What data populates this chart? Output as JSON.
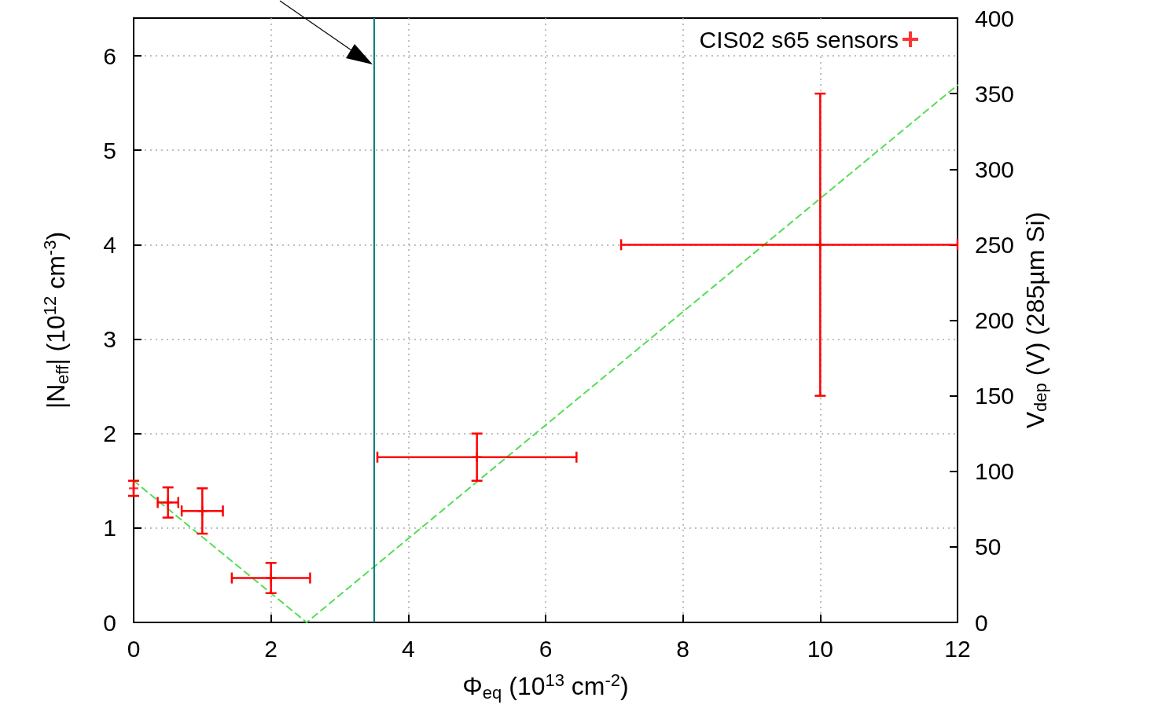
{
  "chart_data": {
    "type": "scatter",
    "xlabel": "Φ$_{eq}$ (10$^{13}$ cm$^{-2}$)",
    "ylabel": "|N$_{eff}$| (10$^{12}$ cm$^{-3}$)",
    "y2label": "V$_{dep}$ (V) (285µm Si)",
    "xlim": [
      0,
      12
    ],
    "xticks": [
      0,
      2,
      4,
      6,
      8,
      10,
      12
    ],
    "ylim": [
      0,
      6.4
    ],
    "yticks": [
      0,
      1,
      2,
      3,
      4,
      5,
      6
    ],
    "y2lim": [
      0,
      400
    ],
    "y2ticks": [
      0,
      50,
      100,
      150,
      200,
      250,
      300,
      350,
      400
    ],
    "grid": true,
    "legend": "top right",
    "series": [
      {
        "name": "CIS02 s65 sensors",
        "color": "#ff0000",
        "marker": "cross",
        "x": [
          0,
          0.5,
          1,
          2,
          5,
          10
        ],
        "values": [
          1.42,
          1.27,
          1.18,
          0.47,
          1.75,
          4.0
        ],
        "errors": [
          0.08,
          0.16,
          0.24,
          0.16,
          0.25,
          1.6
        ],
        "xerrors": [
          0,
          0.15,
          0.3,
          0.57,
          1.45,
          [
            7.1,
            12
          ]
        ]
      },
      {
        "type": "line",
        "color": "#55dd55",
        "line_style": "dashed",
        "marker": "none",
        "x": [
          0,
          2.52,
          12
        ],
        "values": [
          1.5,
          0,
          5.69
        ]
      }
    ],
    "ref_lines": [
      {
        "axis": "x",
        "value": 3.5,
        "color": "#008080"
      }
    ]
  }
}
